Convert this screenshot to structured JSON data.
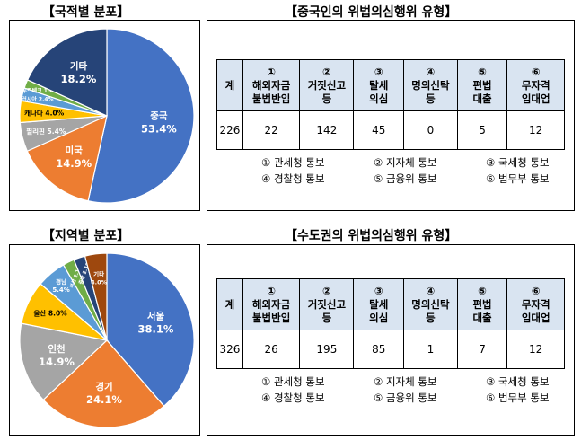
{
  "top": {
    "pie_title": "【국적별 분포】",
    "table_title": "【중국인의 위법의심행위 유형】",
    "table": {
      "headers": [
        {
          "num": "계",
          "label": ""
        },
        {
          "num": "①",
          "label": "해외자금\n불법반입"
        },
        {
          "num": "②",
          "label": "거짓신고\n등"
        },
        {
          "num": "③",
          "label": "탈세\n의심"
        },
        {
          "num": "④",
          "label": "명의신탁\n등"
        },
        {
          "num": "⑤",
          "label": "편법\n대출"
        },
        {
          "num": "⑥",
          "label": "무자격\n임대업"
        }
      ],
      "values": [
        "226",
        "22",
        "142",
        "45",
        "0",
        "5",
        "12"
      ]
    },
    "notes": [
      "① 관세청 통보",
      "② 지자체 통보",
      "③ 국세청 통보",
      "④ 경찰청 통보",
      "⑤ 금융위 통보",
      "⑥ 법무부 통보"
    ]
  },
  "bottom": {
    "pie_title": "【지역별 분포】",
    "table_title": "【수도권의 위법의심행위 유형】",
    "table": {
      "headers": [
        {
          "num": "계",
          "label": ""
        },
        {
          "num": "①",
          "label": "해외자금\n불법반입"
        },
        {
          "num": "②",
          "label": "거짓신고\n등"
        },
        {
          "num": "③",
          "label": "탈세\n의심"
        },
        {
          "num": "④",
          "label": "명의신탁\n등"
        },
        {
          "num": "⑤",
          "label": "편법\n대출"
        },
        {
          "num": "⑥",
          "label": "무자격\n임대업"
        }
      ],
      "values": [
        "326",
        "26",
        "195",
        "85",
        "1",
        "7",
        "12"
      ]
    },
    "notes": [
      "① 관세청 통보",
      "② 지자체 통보",
      "③ 국세청 통보",
      "④ 경찰청 통보",
      "⑤ 금융위 통보",
      "⑥ 법무부 통보"
    ]
  },
  "chart_data": [
    {
      "type": "pie",
      "title": "【국적별 분포】",
      "slices": [
        {
          "label": "중국",
          "value": 53.4,
          "text": "53.4%",
          "color": "#4472c4"
        },
        {
          "label": "미국",
          "value": 14.9,
          "text": "14.9%",
          "color": "#ed7d31"
        },
        {
          "label": "필리핀",
          "value": 5.4,
          "text": "5.4%",
          "color": "#a5a5a5"
        },
        {
          "label": "캐나다",
          "value": 4.0,
          "text": "4.0%",
          "color": "#ffc000"
        },
        {
          "label": "러시아",
          "value": 2.4,
          "text": "2.4%",
          "color": "#5b9bd5"
        },
        {
          "label": "우즈베크",
          "value": 1.6,
          "text": "1.6%",
          "color": "#70ad47"
        },
        {
          "label": "기타",
          "value": 18.2,
          "text": "18.2%",
          "color": "#264478"
        }
      ]
    },
    {
      "type": "pie",
      "title": "【지역별 분포】",
      "slices": [
        {
          "label": "서울",
          "value": 38.1,
          "text": "38.1%",
          "color": "#4472c4"
        },
        {
          "label": "경기",
          "value": 24.1,
          "text": "24.1%",
          "color": "#ed7d31"
        },
        {
          "label": "인천",
          "value": 14.9,
          "text": "14.9%",
          "color": "#a5a5a5"
        },
        {
          "label": "울산",
          "value": 8.0,
          "text": "8.0%",
          "color": "#ffc000"
        },
        {
          "label": "경남",
          "value": 5.4,
          "text": "5.4%",
          "color": "#5b9bd5"
        },
        {
          "label": "부산",
          "value": 2.1,
          "text": "2.1%",
          "color": "#70ad47"
        },
        {
          "label": "충남",
          "value": 2.1,
          "text": "2.1%",
          "color": "#264478"
        },
        {
          "label": "기타",
          "value": 4.0,
          "text": "4.0%",
          "color": "#9e480e"
        }
      ]
    }
  ]
}
